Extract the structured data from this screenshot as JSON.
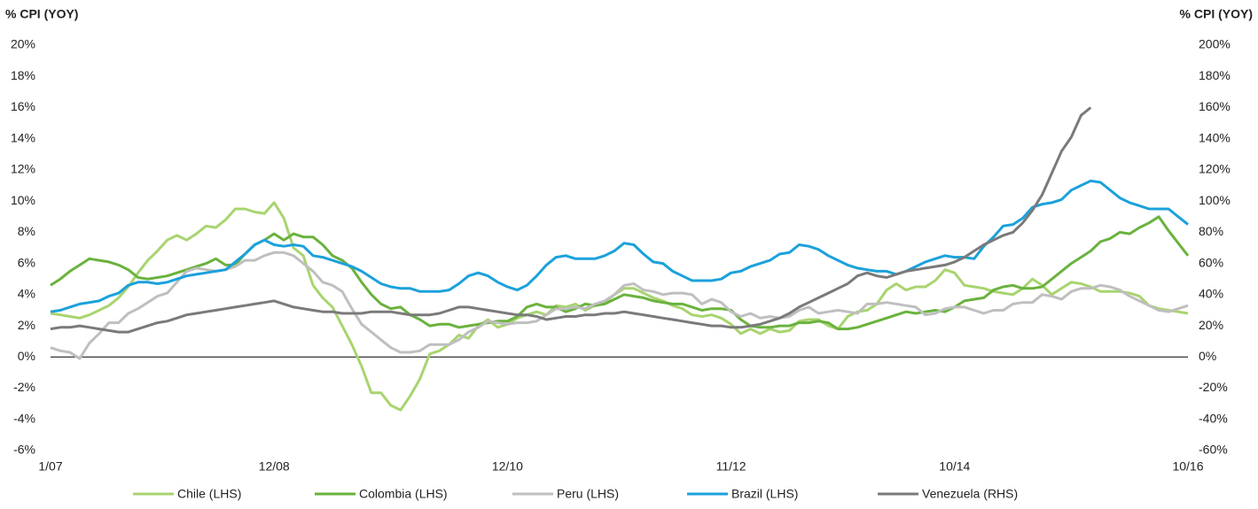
{
  "chart_data": {
    "type": "line",
    "y_label": "% CPI (YOY)",
    "y2_label": "% CPI (YOY)",
    "categories": [
      "1/07",
      null,
      null,
      null,
      null,
      null,
      null,
      null,
      null,
      null,
      null,
      null,
      null,
      null,
      null,
      null,
      null,
      null,
      null,
      null,
      null,
      null,
      null,
      "12/08",
      null,
      null,
      null,
      null,
      null,
      null,
      null,
      null,
      null,
      null,
      null,
      null,
      null,
      null,
      null,
      null,
      null,
      null,
      null,
      null,
      null,
      null,
      null,
      "12/10",
      null,
      null,
      null,
      null,
      null,
      null,
      null,
      null,
      null,
      null,
      null,
      null,
      null,
      null,
      null,
      null,
      null,
      null,
      null,
      null,
      null,
      null,
      "11/12",
      null,
      null,
      null,
      null,
      null,
      null,
      null,
      null,
      null,
      null,
      null,
      null,
      null,
      null,
      null,
      null,
      null,
      null,
      null,
      null,
      null,
      null,
      "10/14",
      null,
      null,
      null,
      null,
      null,
      null,
      null,
      null,
      null,
      null,
      null,
      null,
      null,
      null,
      null,
      null,
      null,
      null,
      null,
      null,
      null,
      null,
      null,
      "10/16"
    ],
    "ylim": [
      -6,
      20
    ],
    "yticks": [
      {
        "value": -6,
        "label": "-6%"
      },
      {
        "value": -4,
        "label": "-4%"
      },
      {
        "value": -2,
        "label": "-2%"
      },
      {
        "value": 0,
        "label": "0%"
      },
      {
        "value": 2,
        "label": "2%"
      },
      {
        "value": 4,
        "label": "4%"
      },
      {
        "value": 6,
        "label": "6%"
      },
      {
        "value": 8,
        "label": "8%"
      },
      {
        "value": 10,
        "label": "10%"
      },
      {
        "value": 12,
        "label": "12%"
      },
      {
        "value": 14,
        "label": "14%"
      },
      {
        "value": 16,
        "label": "16%"
      },
      {
        "value": 18,
        "label": "18%"
      },
      {
        "value": 20,
        "label": "20%"
      }
    ],
    "y2lim": [
      -60,
      200
    ],
    "y2ticks": [
      {
        "value": -60,
        "label": "-60%"
      },
      {
        "value": -40,
        "label": "-40%"
      },
      {
        "value": -20,
        "label": "-20%"
      },
      {
        "value": 0,
        "label": "0%"
      },
      {
        "value": 20,
        "label": "20%"
      },
      {
        "value": 40,
        "label": "40%"
      },
      {
        "value": 60,
        "label": "60%"
      },
      {
        "value": 80,
        "label": "80%"
      },
      {
        "value": 100,
        "label": "100%"
      },
      {
        "value": 120,
        "label": "120%"
      },
      {
        "value": 140,
        "label": "140%"
      },
      {
        "value": 160,
        "label": "160%"
      },
      {
        "value": 180,
        "label": "180%"
      },
      {
        "value": 200,
        "label": "200%"
      }
    ],
    "grid": false,
    "legend": "bottom",
    "series": [
      {
        "name": "Chile (LHS)",
        "color": "#a8d46f",
        "values": [
          2.8,
          2.7,
          2.6,
          2.5,
          2.7,
          3.0,
          3.3,
          3.8,
          4.5,
          5.4,
          6.2,
          6.8,
          7.5,
          7.8,
          7.5,
          7.9,
          8.4,
          8.3,
          8.8,
          9.5,
          9.5,
          9.3,
          9.2,
          9.9,
          8.9,
          7.0,
          6.5,
          4.6,
          3.8,
          3.2,
          2.0,
          0.8,
          -0.6,
          -2.3,
          -2.3,
          -3.1,
          -3.4,
          -2.5,
          -1.4,
          0.2,
          0.4,
          0.8,
          1.4,
          1.2,
          2.0,
          2.4,
          1.9,
          2.1,
          2.5,
          2.7,
          2.9,
          2.7,
          3.3,
          3.2,
          3.4,
          3.0,
          3.3,
          3.5,
          4.0,
          4.4,
          4.4,
          4.1,
          3.8,
          3.6,
          3.3,
          3.1,
          2.7,
          2.6,
          2.7,
          2.5,
          2.1,
          1.5,
          1.8,
          1.5,
          1.8,
          1.6,
          1.7,
          2.3,
          2.4,
          2.4,
          2.0,
          1.8,
          2.6,
          2.9,
          3.0,
          3.4,
          4.3,
          4.7,
          4.3,
          4.5,
          4.5,
          4.9,
          5.6,
          5.4,
          4.6,
          4.5,
          4.4,
          4.2,
          4.1,
          4.0,
          4.4,
          5.0,
          4.6,
          4.0,
          4.4,
          4.8,
          4.7,
          4.5,
          4.2,
          4.2,
          4.2,
          4.1,
          3.9,
          3.3,
          3.1,
          3.0,
          2.9,
          2.8
        ]
      },
      {
        "name": "Colombia (LHS)",
        "color": "#6ab23e",
        "values": [
          4.6,
          5.0,
          5.5,
          5.9,
          6.3,
          6.2,
          6.1,
          5.9,
          5.6,
          5.1,
          5.0,
          5.1,
          5.2,
          5.4,
          5.6,
          5.8,
          6.0,
          6.3,
          5.9,
          5.9,
          6.6,
          7.2,
          7.5,
          7.9,
          7.5,
          7.9,
          7.7,
          7.7,
          7.2,
          6.5,
          6.2,
          5.7,
          4.8,
          4.0,
          3.4,
          3.1,
          3.2,
          2.7,
          2.4,
          2.0,
          2.1,
          2.1,
          1.9,
          2.0,
          2.1,
          2.2,
          2.3,
          2.3,
          2.6,
          3.2,
          3.4,
          3.2,
          3.2,
          2.9,
          3.1,
          3.4,
          3.3,
          3.4,
          3.7,
          4.0,
          3.9,
          3.8,
          3.6,
          3.5,
          3.4,
          3.4,
          3.2,
          3.0,
          3.1,
          3.1,
          3.0,
          2.4,
          2.0,
          1.9,
          1.9,
          2.0,
          2.0,
          2.2,
          2.2,
          2.3,
          2.2,
          1.8,
          1.8,
          1.9,
          2.1,
          2.3,
          2.5,
          2.7,
          2.9,
          2.8,
          2.9,
          3.0,
          2.9,
          3.2,
          3.6,
          3.7,
          3.8,
          4.3,
          4.5,
          4.6,
          4.4,
          4.4,
          4.5,
          5.0,
          5.5,
          6.0,
          6.4,
          6.8,
          7.4,
          7.6,
          8.0,
          7.9,
          8.3,
          8.6,
          9.0,
          8.1,
          7.3,
          6.5
        ]
      },
      {
        "name": "Peru (LHS)",
        "color": "#bfbfbf",
        "values": [
          0.6,
          0.4,
          0.3,
          -0.1,
          0.9,
          1.5,
          2.2,
          2.2,
          2.8,
          3.1,
          3.5,
          3.9,
          4.1,
          4.8,
          5.5,
          5.7,
          5.6,
          5.5,
          5.6,
          5.8,
          6.2,
          6.2,
          6.5,
          6.7,
          6.7,
          6.5,
          6.0,
          5.5,
          4.8,
          4.6,
          4.2,
          3.1,
          2.1,
          1.6,
          1.1,
          0.6,
          0.3,
          0.3,
          0.4,
          0.8,
          0.8,
          0.8,
          1.1,
          1.6,
          1.9,
          2.3,
          2.2,
          2.1,
          2.2,
          2.2,
          2.3,
          2.7,
          3.1,
          3.1,
          3.2,
          3.1,
          3.4,
          3.6,
          4.0,
          4.6,
          4.7,
          4.3,
          4.2,
          4.0,
          4.1,
          4.1,
          4.0,
          3.4,
          3.7,
          3.5,
          2.9,
          2.6,
          2.8,
          2.5,
          2.6,
          2.5,
          2.6,
          3.0,
          3.2,
          2.8,
          2.9,
          3.0,
          2.9,
          2.8,
          3.4,
          3.4,
          3.5,
          3.4,
          3.3,
          3.2,
          2.7,
          2.8,
          3.1,
          3.2,
          3.2,
          3.0,
          2.8,
          3.0,
          3.0,
          3.4,
          3.5,
          3.5,
          4.0,
          3.9,
          3.7,
          4.2,
          4.4,
          4.4,
          4.6,
          4.5,
          4.3,
          3.9,
          3.6,
          3.3,
          3.0,
          2.9,
          3.1,
          3.3
        ]
      },
      {
        "name": "Brazil (LHS)",
        "color": "#1ba1db",
        "values": [
          2.9,
          3.0,
          3.2,
          3.4,
          3.5,
          3.6,
          3.9,
          4.1,
          4.6,
          4.8,
          4.8,
          4.7,
          4.8,
          5.0,
          5.2,
          5.3,
          5.4,
          5.5,
          5.6,
          6.1,
          6.6,
          7.2,
          7.5,
          7.2,
          7.1,
          7.2,
          7.1,
          6.5,
          6.4,
          6.2,
          6.0,
          5.8,
          5.5,
          5.1,
          4.7,
          4.5,
          4.4,
          4.4,
          4.2,
          4.2,
          4.2,
          4.3,
          4.7,
          5.2,
          5.4,
          5.2,
          4.8,
          4.5,
          4.3,
          4.6,
          5.2,
          5.9,
          6.4,
          6.5,
          6.3,
          6.3,
          6.3,
          6.5,
          6.8,
          7.3,
          7.2,
          6.6,
          6.1,
          6.0,
          5.5,
          5.2,
          4.9,
          4.9,
          4.9,
          5.0,
          5.4,
          5.5,
          5.8,
          6.0,
          6.2,
          6.6,
          6.7,
          7.2,
          7.1,
          6.9,
          6.5,
          6.2,
          5.9,
          5.7,
          5.6,
          5.5,
          5.5,
          5.3,
          5.5,
          5.8,
          6.1,
          6.3,
          6.5,
          6.4,
          6.4,
          6.3,
          7.1,
          7.7,
          8.4,
          8.5,
          8.9,
          9.6,
          9.8,
          9.9,
          10.1,
          10.7,
          11.0,
          11.3,
          11.2,
          10.7,
          10.2,
          9.9,
          9.7,
          9.5,
          9.5,
          9.5,
          9.0,
          8.5
        ]
      },
      {
        "name": "Venezuela (RHS)",
        "color": "#7a7a7a",
        "axis": "y2",
        "values": [
          18,
          19,
          19,
          20,
          19,
          18,
          17,
          16,
          16,
          18,
          20,
          22,
          23,
          25,
          27,
          28,
          29,
          30,
          31,
          32,
          33,
          34,
          35,
          36,
          34,
          32,
          31,
          30,
          29,
          29,
          28,
          28,
          28,
          29,
          29,
          29,
          28,
          27,
          27,
          27,
          28,
          30,
          32,
          32,
          31,
          30,
          29,
          28,
          27,
          27,
          26,
          24,
          25,
          26,
          26,
          27,
          27,
          28,
          28,
          29,
          28,
          27,
          26,
          25,
          24,
          23,
          22,
          21,
          20,
          20,
          19,
          19,
          20,
          21,
          23,
          25,
          28,
          32,
          35,
          38,
          41,
          44,
          47,
          52,
          54,
          52,
          51,
          53,
          55,
          56,
          57,
          58,
          59,
          61,
          64,
          68,
          72,
          75,
          78,
          80,
          86,
          94,
          104,
          118,
          132,
          141,
          155,
          160,
          null,
          null,
          null,
          null,
          null,
          null,
          null,
          null,
          null,
          null
        ]
      }
    ]
  }
}
